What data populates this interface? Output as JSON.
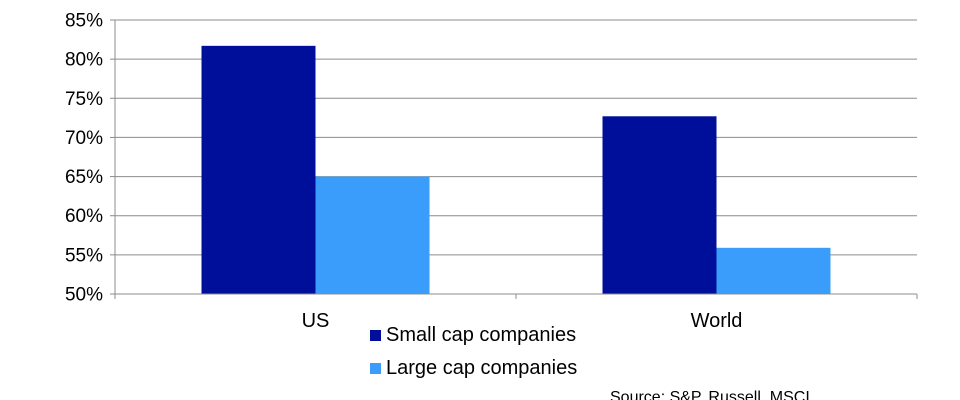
{
  "chart_data": {
    "type": "bar",
    "categories": [
      "US",
      "World"
    ],
    "series": [
      {
        "name": "Small cap companies",
        "values": [
          81.7,
          72.7
        ],
        "color": "#000f99"
      },
      {
        "name": "Large cap companies",
        "values": [
          65.0,
          55.9
        ],
        "color": "#3a9dfb"
      }
    ],
    "ylim": [
      50,
      85
    ],
    "y_ticks": [
      "50%",
      "55%",
      "60%",
      "65%",
      "70%",
      "75%",
      "80%",
      "85%"
    ],
    "y_tick_values": [
      50,
      55,
      60,
      65,
      70,
      75,
      80,
      85
    ],
    "grid": true,
    "grid_color": "#8c8c8c",
    "axis_color": "#8c8c8c",
    "legend_position": "bottom",
    "source": "Source: S&P, Russell, MSCI"
  }
}
